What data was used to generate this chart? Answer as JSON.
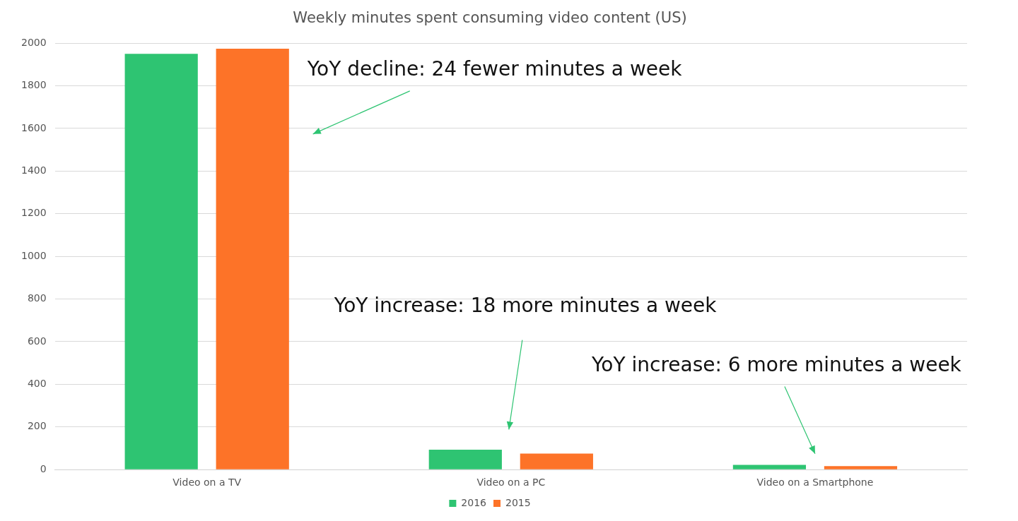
{
  "chart_data": {
    "type": "bar",
    "title": "Weekly minutes spent consuming video content (US)",
    "categories": [
      "Video on a TV",
      "Video on a PC",
      "Video on a Smartphone"
    ],
    "series": [
      {
        "name": "2016",
        "color": "#2ec472",
        "values": [
          1950,
          93,
          22
        ]
      },
      {
        "name": "2015",
        "color": "#fd7328",
        "values": [
          1974,
          75,
          16
        ]
      }
    ],
    "ylim": [
      0,
      2000
    ],
    "yticks": [
      0,
      200,
      400,
      600,
      800,
      1000,
      1200,
      1400,
      1600,
      1800,
      2000
    ],
    "grid": "y",
    "legend": "bottom",
    "annotations": [
      "YoY decline: 24 fewer minutes a week",
      "YoY increase: 18 more minutes a week",
      "YoY increase: 6 more minutes a week"
    ]
  }
}
